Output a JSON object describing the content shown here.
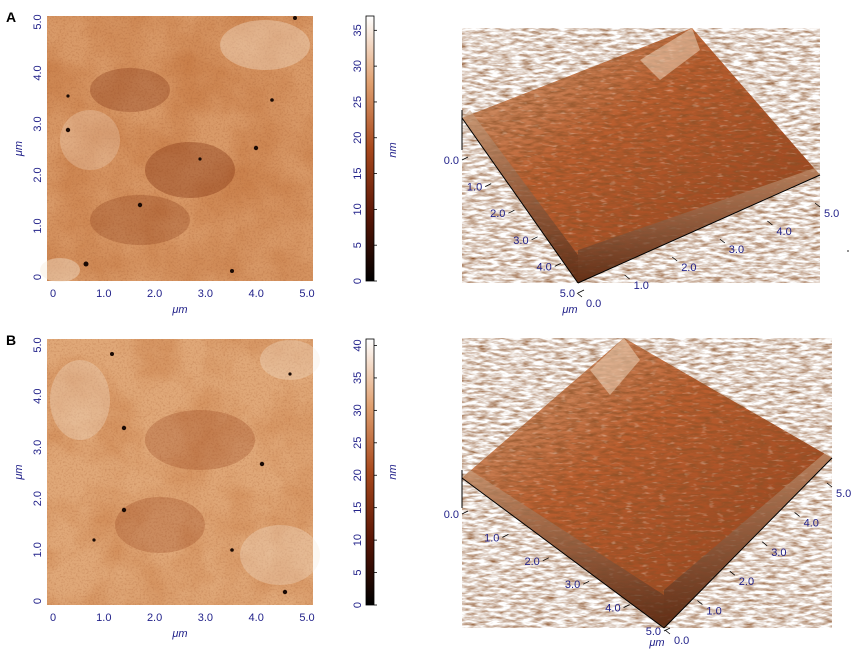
{
  "panels": [
    {
      "label": "A",
      "map": {
        "x_ticks": [
          "0",
          "1.0",
          "2.0",
          "3.0",
          "4.0",
          "5.0"
        ],
        "y_ticks": [
          "0",
          "1.0",
          "2.0",
          "3.0",
          "4.0",
          "5.0"
        ],
        "x_unit": "μm",
        "y_unit": "μm",
        "colorbar_ticks": [
          "0",
          "5",
          "10",
          "15",
          "20",
          "25",
          "30",
          "35"
        ],
        "colorbar_unit": "nm",
        "colorbar_max": 37
      },
      "surface": {
        "left_axis_ticks": [
          "0.0",
          "1.0",
          "2.0",
          "3.0",
          "4.0",
          "5.0"
        ],
        "right_axis_ticks": [
          "0.0",
          "1.0",
          "2.0",
          "3.0",
          "4.0",
          "5.0"
        ],
        "unit": "μm"
      }
    },
    {
      "label": "B",
      "map": {
        "x_ticks": [
          "0",
          "1.0",
          "2.0",
          "3.0",
          "4.0",
          "5.0"
        ],
        "y_ticks": [
          "0",
          "1.0",
          "2.0",
          "3.0",
          "4.0",
          "5.0"
        ],
        "x_unit": "μm",
        "y_unit": "μm",
        "colorbar_ticks": [
          "0",
          "5",
          "10",
          "15",
          "20",
          "25",
          "30",
          "35",
          "40"
        ],
        "colorbar_unit": "nm",
        "colorbar_max": 41
      },
      "surface": {
        "left_axis_ticks": [
          "0.0",
          "1.0",
          "2.0",
          "3.0",
          "4.0",
          "5.0"
        ],
        "right_axis_ticks": [
          "0.0",
          "1.0",
          "2.0",
          "3.0",
          "4.0",
          "5.0"
        ],
        "unit": "μm"
      }
    }
  ],
  "colors": {
    "dark": "#1a0a04",
    "mid_dark": "#7a2a0c",
    "mid": "#b8582a",
    "light": "#e8b48a",
    "highlight": "#f6e8d6",
    "axis_text": "#22228a"
  }
}
